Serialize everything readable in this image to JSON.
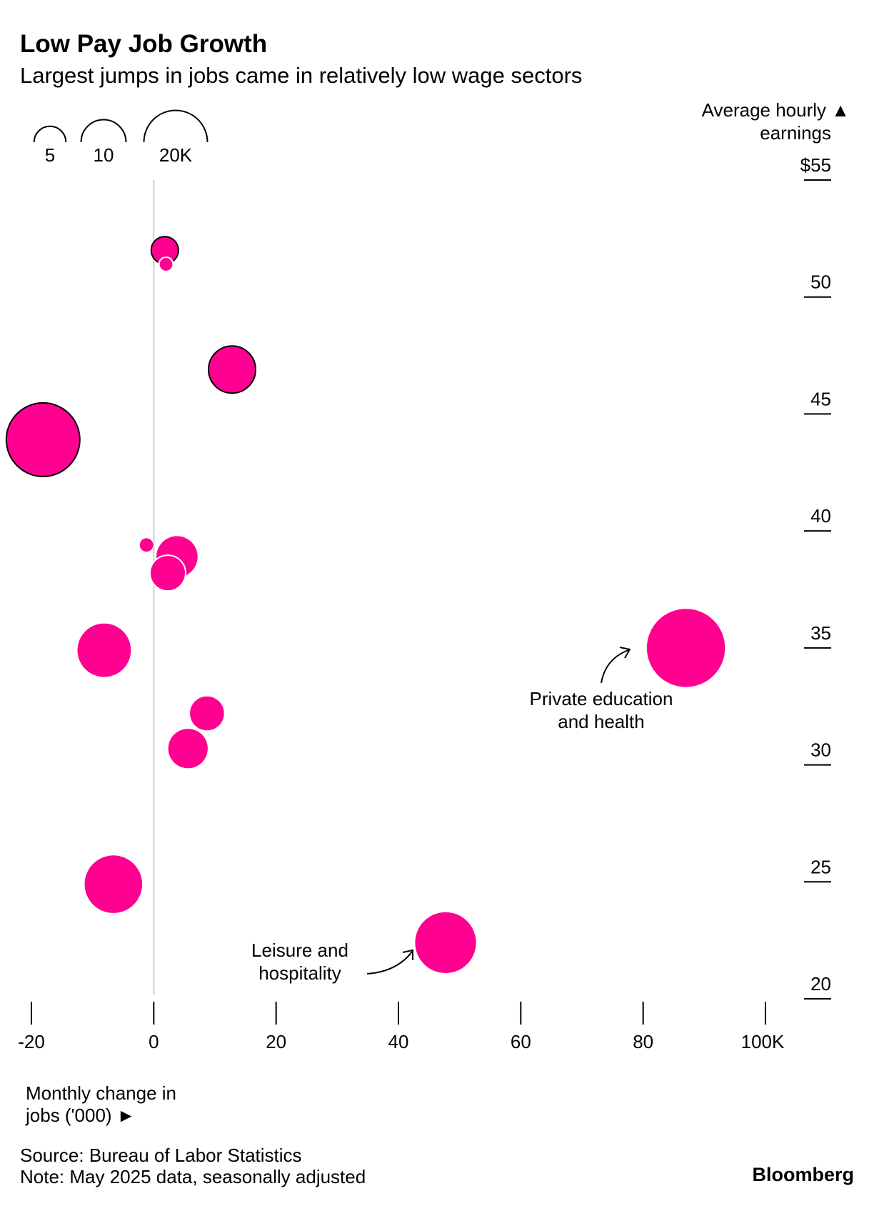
{
  "title": "Low Pay Job Growth",
  "subtitle": "Largest jumps in jobs came in relatively low wage sectors",
  "source": "Source: Bureau of Labor Statistics",
  "note": "Note: May 2025 data, seasonally adjusted",
  "brand": "Bloomberg",
  "colors": {
    "bubble": "#ff0090",
    "outline_dark": "#000000",
    "outline_light": "#ffffff",
    "axis": "#000000",
    "zero_line": "#d0d0d0"
  },
  "chart_data": {
    "type": "scatter",
    "title": "Low Pay Job Growth",
    "subtitle": "Largest jumps in jobs came in relatively low wage sectors",
    "x_axis": {
      "label_lines": [
        "Monthly change in",
        "jobs ('000) ►"
      ],
      "range": [
        -20,
        100
      ],
      "ticks": [
        -20,
        0,
        20,
        40,
        60,
        80,
        100
      ],
      "tick_labels": [
        "-20",
        "0",
        "20",
        "40",
        "60",
        "80",
        "100K"
      ]
    },
    "y_axis": {
      "label_lines": [
        "Average hourly ▲",
        "earnings"
      ],
      "range": [
        20,
        55
      ],
      "ticks": [
        20,
        25,
        30,
        35,
        40,
        45,
        50,
        55
      ],
      "tick_labels": [
        "20",
        "25",
        "30",
        "35",
        "40",
        "45",
        "50",
        "$55"
      ],
      "position": "right"
    },
    "size_legend": {
      "values": [
        5,
        10,
        20
      ],
      "labels": [
        "5",
        "10",
        "20K"
      ],
      "placement": "top-left"
    },
    "points": [
      {
        "x": 1.8,
        "y": 52.0,
        "size": 3.7,
        "outline": "dark"
      },
      {
        "x": 2.0,
        "y": 51.4,
        "size": 1.0,
        "outline": "light"
      },
      {
        "x": 12.8,
        "y": 46.9,
        "size": 11.0,
        "outline": "dark"
      },
      {
        "x": -18.1,
        "y": 43.9,
        "size": 26.8,
        "outline": "dark"
      },
      {
        "x": -1.2,
        "y": 39.4,
        "size": 0.9,
        "outline": "none"
      },
      {
        "x": 3.8,
        "y": 38.9,
        "size": 8.4,
        "outline": "none"
      },
      {
        "x": 2.3,
        "y": 38.2,
        "size": 6.3,
        "outline": "light"
      },
      {
        "x": -8.1,
        "y": 34.9,
        "size": 14.1,
        "outline": "none"
      },
      {
        "x": 87.0,
        "y": 35.0,
        "size": 30.2,
        "outline": "none"
      },
      {
        "x": 8.7,
        "y": 32.2,
        "size": 6.2,
        "outline": "light"
      },
      {
        "x": 5.6,
        "y": 30.7,
        "size": 7.7,
        "outline": "none"
      },
      {
        "x": -6.6,
        "y": 24.9,
        "size": 16.4,
        "outline": "none"
      },
      {
        "x": 47.7,
        "y": 22.4,
        "size": 18.3,
        "outline": "none"
      }
    ],
    "annotations": [
      {
        "lines": [
          "Private education",
          "and health"
        ]
      },
      {
        "lines": [
          "Leisure and",
          "hospitality"
        ]
      }
    ],
    "grid": false,
    "legend": "top-left"
  }
}
